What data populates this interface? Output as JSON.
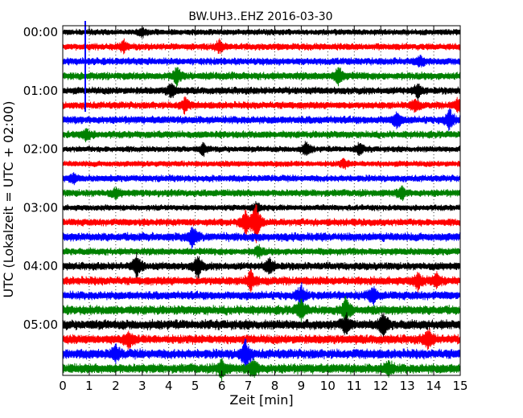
{
  "chart_data": {
    "type": "line",
    "title": "BW.UH3..EHZ 2016-03-30",
    "xlabel": "Zeit  [min]",
    "ylabel": "UTC (Lokalzeit = UTC + 02:00)",
    "xlim": [
      0,
      15
    ],
    "x_ticks": [
      "0",
      "1",
      "2",
      "3",
      "4",
      "5",
      "6",
      "7",
      "8",
      "9",
      "10",
      "11",
      "12",
      "13",
      "14",
      "15"
    ],
    "y_tick_labels": [
      "00:00",
      "01:00",
      "02:00",
      "03:00",
      "04:00",
      "05:00"
    ],
    "trace_interval_min": 15,
    "grid": "vertical dotted at each minute",
    "trace_colors": [
      "#000000",
      "#ff0000",
      "#0000ff",
      "#008000"
    ],
    "traces": [
      {
        "start": "00:00",
        "color": "#000000",
        "amplitude": 0.25,
        "events": [
          [
            3.0,
            0.3
          ]
        ]
      },
      {
        "start": "00:15",
        "color": "#ff0000",
        "amplitude": 0.28,
        "events": [
          [
            2.3,
            0.4
          ],
          [
            5.9,
            0.4
          ]
        ]
      },
      {
        "start": "00:30",
        "color": "#0000ff",
        "amplitude": 0.3,
        "events": [
          [
            13.5,
            0.3
          ]
        ]
      },
      {
        "start": "00:45",
        "color": "#008000",
        "amplitude": 0.32,
        "events": [
          [
            4.3,
            0.6
          ],
          [
            10.4,
            0.6
          ]
        ]
      },
      {
        "start": "01:00",
        "color": "#000000",
        "amplitude": 0.3,
        "events": [
          [
            4.1,
            0.5
          ],
          [
            13.4,
            0.5
          ]
        ]
      },
      {
        "start": "01:15",
        "color": "#ff0000",
        "amplitude": 0.3,
        "events": [
          [
            4.6,
            0.5
          ],
          [
            13.3,
            0.4
          ],
          [
            14.9,
            0.4
          ]
        ]
      },
      {
        "start": "01:30",
        "color": "#0000ff",
        "amplitude": 0.32,
        "events": [
          [
            12.6,
            0.5
          ],
          [
            14.6,
            0.7
          ]
        ]
      },
      {
        "start": "01:45",
        "color": "#008000",
        "amplitude": 0.3,
        "events": [
          [
            0.9,
            0.4
          ]
        ]
      },
      {
        "start": "02:00",
        "color": "#000000",
        "amplitude": 0.25,
        "events": [
          [
            5.3,
            0.4
          ],
          [
            9.2,
            0.5
          ],
          [
            11.2,
            0.4
          ]
        ]
      },
      {
        "start": "02:15",
        "color": "#ff0000",
        "amplitude": 0.25,
        "events": [
          [
            10.6,
            0.3
          ]
        ]
      },
      {
        "start": "02:30",
        "color": "#0000ff",
        "amplitude": 0.28,
        "events": [
          [
            0.4,
            0.3
          ]
        ]
      },
      {
        "start": "02:45",
        "color": "#008000",
        "amplitude": 0.3,
        "events": [
          [
            2.0,
            0.3
          ],
          [
            12.8,
            0.4
          ]
        ]
      },
      {
        "start": "03:00",
        "color": "#000000",
        "amplitude": 0.25,
        "events": [
          [
            7.3,
            0.4
          ]
        ]
      },
      {
        "start": "03:15",
        "color": "#ff0000",
        "amplitude": 0.3,
        "events": [
          [
            6.9,
            0.9
          ],
          [
            7.3,
            1.4
          ]
        ]
      },
      {
        "start": "03:30",
        "color": "#0000ff",
        "amplitude": 0.35,
        "events": [
          [
            4.9,
            0.8
          ]
        ]
      },
      {
        "start": "03:45",
        "color": "#008000",
        "amplitude": 0.3,
        "events": [
          [
            7.4,
            0.4
          ]
        ]
      },
      {
        "start": "04:00",
        "color": "#000000",
        "amplitude": 0.32,
        "events": [
          [
            2.8,
            0.8
          ],
          [
            5.1,
            0.8
          ],
          [
            7.8,
            0.6
          ]
        ]
      },
      {
        "start": "04:15",
        "color": "#ff0000",
        "amplitude": 0.35,
        "events": [
          [
            7.1,
            0.7
          ],
          [
            13.4,
            0.6
          ],
          [
            14.1,
            0.5
          ]
        ]
      },
      {
        "start": "04:30",
        "color": "#0000ff",
        "amplitude": 0.35,
        "events": [
          [
            9.0,
            0.7
          ],
          [
            11.7,
            0.6
          ]
        ]
      },
      {
        "start": "04:45",
        "color": "#008000",
        "amplitude": 0.38,
        "events": [
          [
            9.0,
            0.7
          ],
          [
            10.7,
            0.9
          ]
        ]
      },
      {
        "start": "05:00",
        "color": "#000000",
        "amplitude": 0.4,
        "events": [
          [
            10.7,
            0.7
          ],
          [
            12.1,
            0.9
          ]
        ]
      },
      {
        "start": "05:15",
        "color": "#ff0000",
        "amplitude": 0.38,
        "events": [
          [
            2.5,
            0.5
          ],
          [
            13.8,
            0.7
          ]
        ]
      },
      {
        "start": "05:30",
        "color": "#0000ff",
        "amplitude": 0.4,
        "events": [
          [
            6.9,
            1.0
          ],
          [
            2.0,
            0.5
          ]
        ]
      },
      {
        "start": "05:45",
        "color": "#008000",
        "amplitude": 0.4,
        "events": [
          [
            6.0,
            0.7
          ],
          [
            7.2,
            0.6
          ],
          [
            12.3,
            0.5
          ]
        ]
      }
    ],
    "spikes": [
      {
        "x": 0.85,
        "start_trace": 0,
        "end_trace": 5,
        "color": "#0000ff"
      }
    ]
  }
}
